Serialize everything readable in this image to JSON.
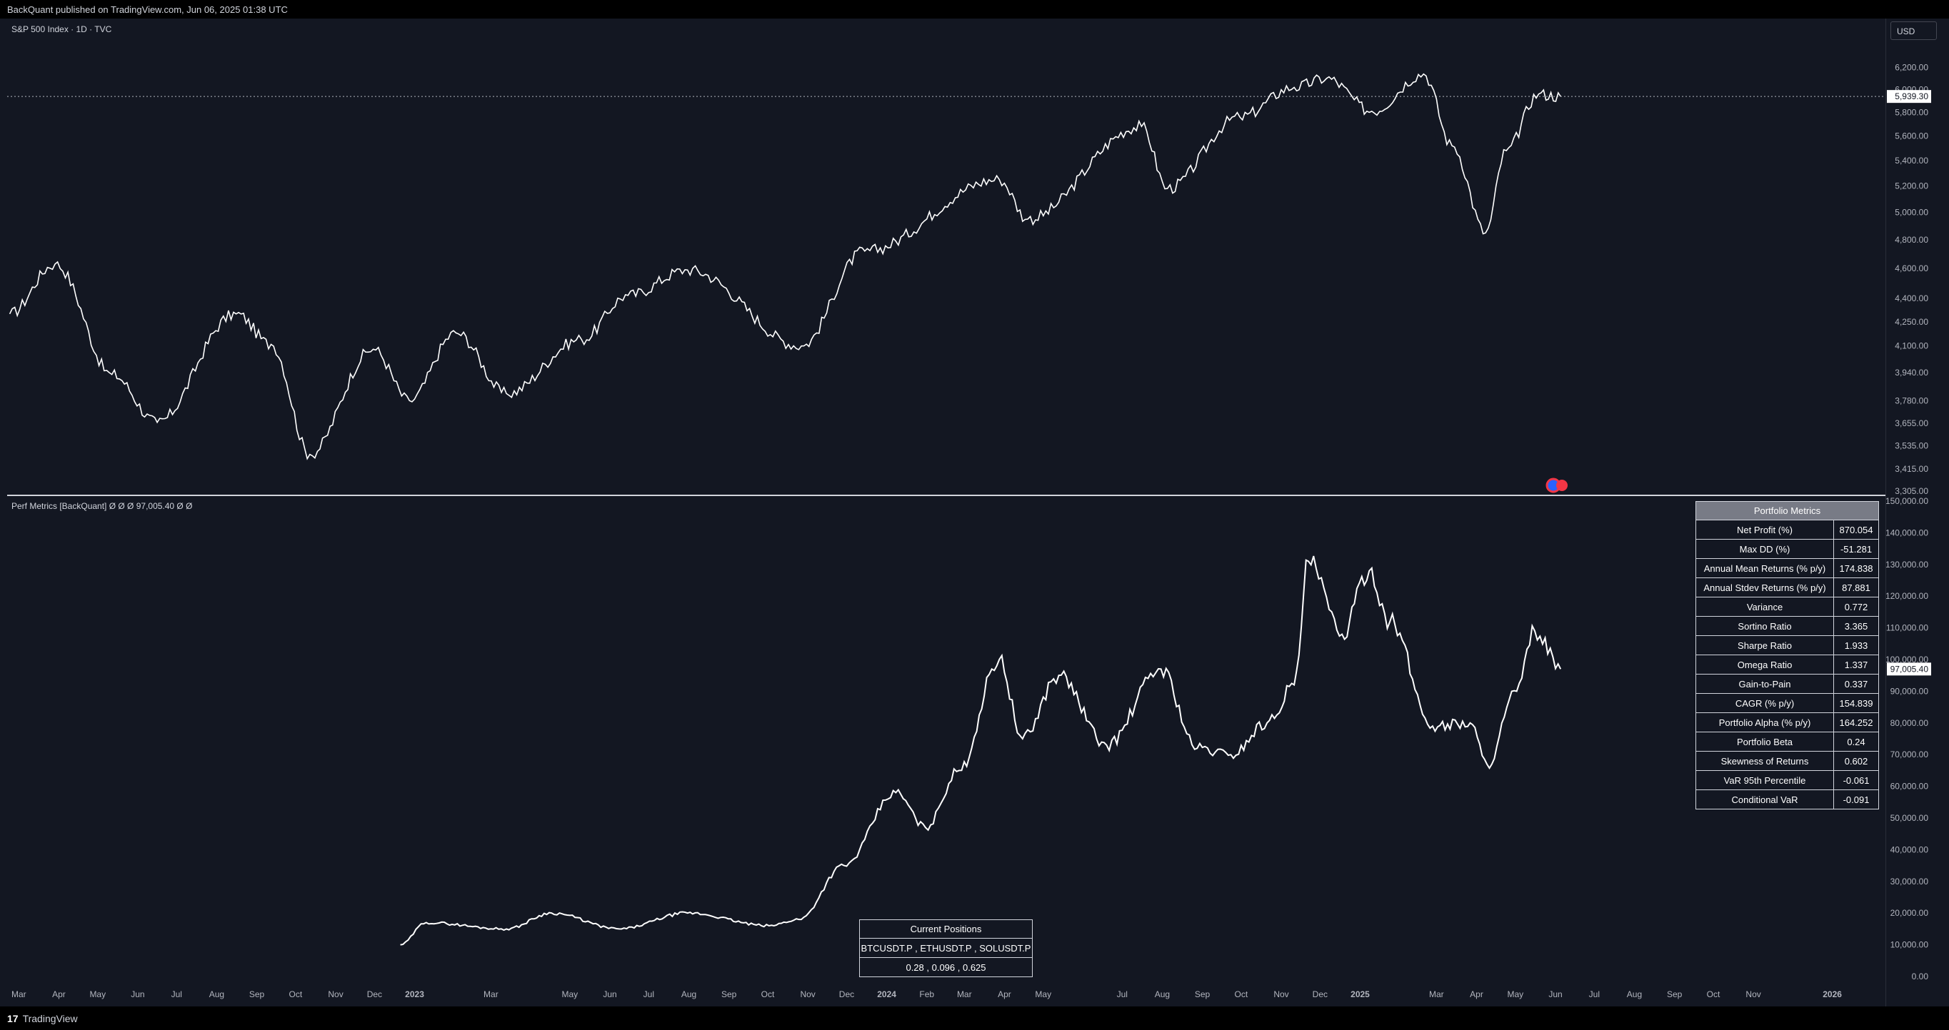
{
  "header": {
    "published": "BackQuant published on TradingView.com, Jun 06, 2025 01:38 UTC"
  },
  "footer": {
    "brand": "TradingView",
    "logo": "tv-logo-icon"
  },
  "colors": {
    "background": "#131722",
    "line": "#ffffff",
    "grid": "#2a2e39",
    "table_header": "#787b86"
  },
  "price_pane": {
    "title": "S&P 500 Index · 1D · TVC",
    "currency": "USD",
    "last_price_label": "5,939.30"
  },
  "perf_pane": {
    "title": "Perf Metrics [BackQuant]  Ø  Ø  Ø  97,005.40  Ø  Ø",
    "last_value_label": "97,005.40"
  },
  "portfolio_metrics": {
    "header": "Portfolio Metrics",
    "rows": [
      {
        "label": "Net Profit (%)",
        "value": "870.054"
      },
      {
        "label": "Max DD (%)",
        "value": "-51.281"
      },
      {
        "label": "Annual Mean Returns (% p/y)",
        "value": "174.838"
      },
      {
        "label": "Annual Stdev Returns (% p/y)",
        "value": "87.881"
      },
      {
        "label": "Variance",
        "value": "0.772"
      },
      {
        "label": "Sortino Ratio",
        "value": "3.365"
      },
      {
        "label": "Sharpe Ratio",
        "value": "1.933"
      },
      {
        "label": "Omega Ratio",
        "value": "1.337"
      },
      {
        "label": "Gain-to-Pain",
        "value": "0.337"
      },
      {
        "label": "CAGR (% p/y)",
        "value": "154.839"
      },
      {
        "label": "Portfolio Alpha (% p/y)",
        "value": "164.252"
      },
      {
        "label": "Portfolio Beta",
        "value": "0.24"
      },
      {
        "label": "Skewness of Returns",
        "value": "0.602"
      },
      {
        "label": "VaR 95th Percentile",
        "value": "-0.061"
      },
      {
        "label": "Conditional VaR",
        "value": "-0.091"
      }
    ]
  },
  "current_positions": {
    "header": "Current Positions",
    "assets": "BTCUSDT.P , ETHUSDT.P , SOLUSDT.P",
    "weights": "0.28 , 0.096 , 0.625"
  },
  "chart_data": [
    {
      "type": "line",
      "title": "S&P 500 Index · 1D · TVC",
      "scale": "log",
      "ylim": [
        3305,
        6250
      ],
      "y_ticks": [
        "6,200.00",
        "6,000.00",
        "5,800.00",
        "5,600.00",
        "5,400.00",
        "5,200.00",
        "5,000.00",
        "4,800.00",
        "4,600.00",
        "4,400.00",
        "4,250.00",
        "4,100.00",
        "3,940.00",
        "3,780.00",
        "3,655.00",
        "3,535.00",
        "3,415.00",
        "3,305.00"
      ],
      "x_ticks": [
        "Mar",
        "Apr",
        "May",
        "Jun",
        "Jul",
        "Aug",
        "Sep",
        "Oct",
        "Nov",
        "Dec",
        "2023",
        "Mar",
        "May",
        "Jun",
        "Jul",
        "Aug",
        "Sep",
        "Oct",
        "Nov",
        "Dec",
        "2024",
        "Feb",
        "Mar",
        "Apr",
        "May",
        "Jul",
        "Aug",
        "Sep",
        "Oct",
        "Nov",
        "Dec",
        "2025",
        "Mar",
        "Apr",
        "May",
        "Jun",
        "Jul",
        "Aug",
        "Sep",
        "Oct",
        "Nov",
        "2026"
      ],
      "series": [
        {
          "x": [
            "2022-02-22",
            "2022-03-29",
            "2022-05-12",
            "2022-06-16",
            "2022-08-16",
            "2022-09-12",
            "2022-10-12",
            "2022-11-30",
            "2022-12-28",
            "2023-02-02",
            "2023-03-13",
            "2023-05-10",
            "2023-06-15",
            "2023-07-31",
            "2023-10-27",
            "2023-12-15",
            "2024-03-28",
            "2024-04-19",
            "2024-07-16",
            "2024-08-05",
            "2024-09-30",
            "2024-11-11",
            "2024-12-06",
            "2025-01-10",
            "2025-02-19",
            "2025-03-13",
            "2025-04-08",
            "2025-04-24",
            "2025-05-19",
            "2025-06-05"
          ],
          "values": [
            4300,
            4630,
            3930,
            3660,
            4300,
            4110,
            3490,
            4080,
            3780,
            4180,
            3820,
            4140,
            4420,
            4590,
            4100,
            4720,
            5250,
            4950,
            5680,
            5180,
            5760,
            6020,
            6100,
            5810,
            6140,
            5520,
            4850,
            5480,
            5960,
            5939
          ]
        }
      ]
    },
    {
      "type": "line",
      "title": "Perf Metrics [BackQuant]",
      "ylim": [
        0,
        150000
      ],
      "y_ticks": [
        "150,000.00",
        "140,000.00",
        "130,000.00",
        "120,000.00",
        "110,000.00",
        "100,000.00",
        "90,000.00",
        "80,000.00",
        "70,000.00",
        "60,000.00",
        "50,000.00",
        "40,000.00",
        "30,000.00",
        "20,000.00",
        "10,000.00",
        "0.00"
      ],
      "series": [
        {
          "x": [
            "2022-12-21",
            "2023-01-10",
            "2023-03-13",
            "2023-04-17",
            "2023-06-08",
            "2023-07-31",
            "2023-10-02",
            "2023-10-25",
            "2023-11-29",
            "2024-01-08",
            "2024-01-31",
            "2024-02-26",
            "2024-03-28",
            "2024-04-15",
            "2024-05-13",
            "2024-06-19",
            "2024-07-31",
            "2024-08-28",
            "2024-09-23",
            "2024-10-21",
            "2024-11-11",
            "2024-11-22",
            "2024-12-18",
            "2025-01-08",
            "2025-01-24",
            "2025-02-26",
            "2025-03-27",
            "2025-04-09",
            "2025-05-02",
            "2025-05-16",
            "2025-06-05"
          ],
          "values": [
            10000,
            17000,
            15000,
            20000,
            15000,
            20000,
            16000,
            18000,
            35000,
            58000,
            47000,
            65000,
            100000,
            75000,
            95000,
            73000,
            97000,
            72000,
            70000,
            80000,
            92000,
            131000,
            108000,
            128000,
            112000,
            79000,
            80000,
            67000,
            90000,
            109000,
            97000
          ]
        }
      ]
    }
  ]
}
